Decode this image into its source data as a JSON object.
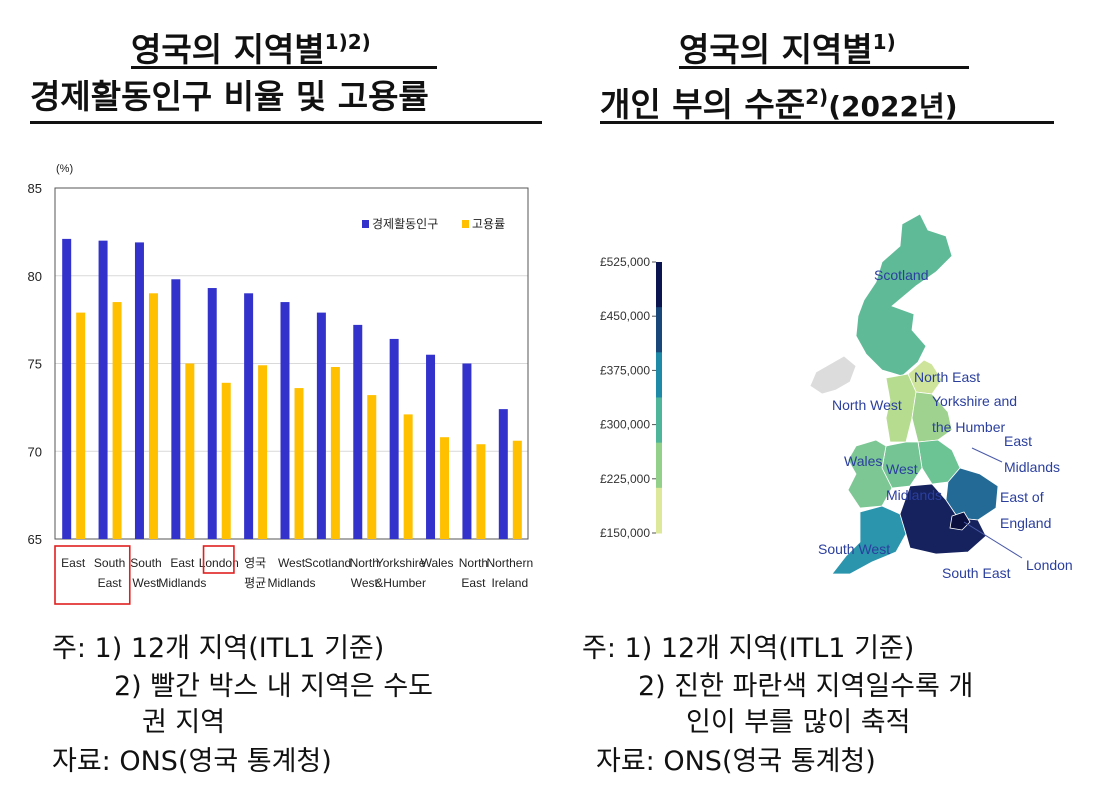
{
  "left": {
    "title_line1": "영국의 지역별",
    "title_line1_sup": "1)2)",
    "title_line2": "경제활동인구 비율 및 고용률",
    "notes": [
      "주: 1) 12개 지역(ITL1 기준)",
      "2) 빨간 박스 내 지역은 수도",
      "권 지역",
      "자료: ONS(영국 통계청)"
    ]
  },
  "right": {
    "title_line1": "영국의 지역별",
    "title_line1_sup": "1)",
    "title_line2": "개인 부의 수준",
    "title_line2_sup": "2)",
    "title_line2_suffix": "(2022년)",
    "notes": [
      "주: 1) 12개 지역(ITL1 기준)",
      "2) 진한 파란색 지역일수록 개",
      "인이 부를 많이 축적",
      "자료: ONS(영국 통계청)"
    ]
  },
  "chart_data": [
    {
      "type": "bar",
      "unit_label": "(%)",
      "categories": [
        [
          "East"
        ],
        [
          "South",
          "East"
        ],
        [
          "South",
          "West"
        ],
        [
          "East",
          "Midlands"
        ],
        [
          "London"
        ],
        [
          "영국",
          "평균"
        ],
        [
          "West",
          "Midlands"
        ],
        [
          "Scotland"
        ],
        [
          "North",
          "West"
        ],
        [
          "Yorkshire",
          "&Humber"
        ],
        [
          "Wales"
        ],
        [
          "North",
          "East"
        ],
        [
          "Northern",
          "Ireland"
        ]
      ],
      "highlighted_categories": [
        0,
        1,
        4
      ],
      "ylim": [
        65,
        85
      ],
      "yticks": [
        65,
        70,
        75,
        80,
        85
      ],
      "grid": true,
      "legend_placement": "top-right",
      "series": [
        {
          "name": "경제활동인구",
          "color": "#3333cc",
          "values": [
            82.1,
            82.0,
            81.9,
            79.8,
            79.3,
            79.0,
            78.5,
            77.9,
            77.2,
            76.4,
            75.5,
            75.0,
            72.4
          ]
        },
        {
          "name": "고용률",
          "color": "#ffc000",
          "values": [
            77.9,
            78.5,
            79.0,
            75.0,
            73.9,
            74.9,
            73.6,
            74.8,
            73.2,
            72.1,
            70.8,
            70.4,
            70.6
          ]
        }
      ]
    },
    {
      "type": "heatmap",
      "scale_ticks": [
        "£525,000",
        "£450,000",
        "£375,000",
        "£300,000",
        "£225,000",
        "£150,000"
      ],
      "scale_colors": [
        "#0b1550",
        "#19477a",
        "#1f8aa8",
        "#4fb59a",
        "#93d08a",
        "#dde89a"
      ],
      "regions": [
        {
          "name": "Scotland",
          "label_lines": [
            "Scotland"
          ],
          "color": "#5fbb97"
        },
        {
          "name": "North East",
          "label_lines": [
            "North  East"
          ],
          "color": "#cde49a"
        },
        {
          "name": "North West",
          "label_lines": [
            "North West"
          ],
          "color": "#dcdcdc"
        },
        {
          "name": "Yorkshire and the Humber",
          "label_lines": [
            "Yorkshire and",
            "the Humber"
          ],
          "color": "#9fd28e"
        },
        {
          "name": "East Midlands",
          "label_lines": [
            "East",
            "Midlands"
          ],
          "color": "#6cc394"
        },
        {
          "name": "Wales",
          "label_lines": [
            "Wales"
          ],
          "color": "#7cc793"
        },
        {
          "name": "West Midlands",
          "label_lines": [
            "West",
            "Midlands"
          ],
          "color": "#74c494"
        },
        {
          "name": "East of England",
          "label_lines": [
            "East of",
            "England"
          ],
          "color": "#236b96"
        },
        {
          "name": "South West",
          "label_lines": [
            "South West"
          ],
          "color": "#2b95ad"
        },
        {
          "name": "South East",
          "label_lines": [
            "South East"
          ],
          "color": "#15225e"
        },
        {
          "name": "London",
          "label_lines": [
            "London"
          ],
          "color": "#0a0f3f"
        }
      ]
    }
  ]
}
